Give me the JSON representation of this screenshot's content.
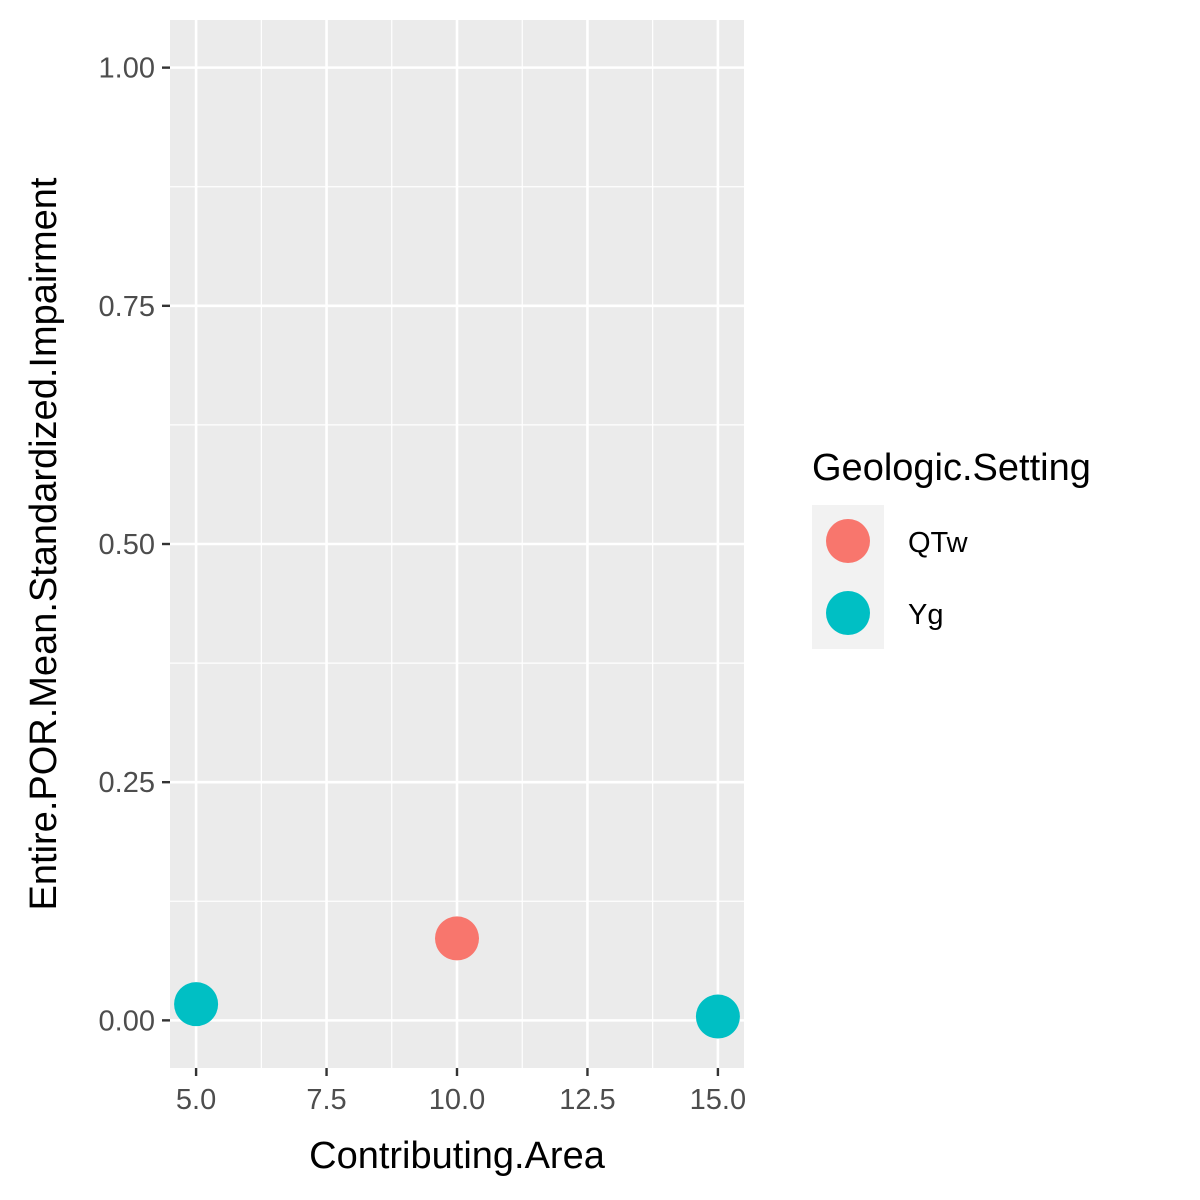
{
  "chart_data": {
    "type": "scatter",
    "xlabel": "Contributing.Area",
    "ylabel": "Entire.POR.Mean.Standardized.Impairment",
    "xlim": [
      4.5,
      15.5
    ],
    "ylim": [
      -0.05,
      1.05
    ],
    "x_ticks": [
      5.0,
      7.5,
      10.0,
      12.5,
      15.0
    ],
    "x_tick_labels": [
      "5.0",
      "7.5",
      "10.0",
      "12.5",
      "15.0"
    ],
    "y_ticks": [
      0.0,
      0.25,
      0.5,
      0.75,
      1.0
    ],
    "y_tick_labels": [
      "0.00",
      "0.25",
      "0.50",
      "0.75",
      "1.00"
    ],
    "grid": true,
    "legend": {
      "title": "Geologic.Setting",
      "position": "right"
    },
    "series": [
      {
        "name": "QTw",
        "color": "#F8766D",
        "points": [
          {
            "x": 10.0,
            "y": 0.086
          }
        ]
      },
      {
        "name": "Yg",
        "color": "#00BFC4",
        "points": [
          {
            "x": 5.0,
            "y": 0.017
          },
          {
            "x": 15.0,
            "y": 0.004
          }
        ]
      }
    ],
    "colors": {
      "panel_background": "#EBEBEB",
      "grid": "#FFFFFF",
      "tick_text": "#4D4D4D",
      "tick_mark": "#333333",
      "legend_key_background": "#F2F2F2"
    }
  }
}
